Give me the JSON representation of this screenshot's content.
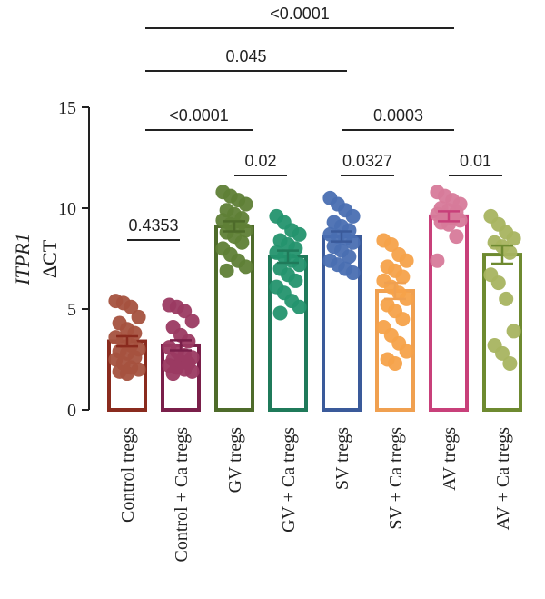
{
  "chart_data": {
    "type": "bar",
    "ylabel_line1": "ITPR1",
    "ylabel_line2": "ΔCT",
    "ylim": [
      0,
      15
    ],
    "yticks": [
      "0",
      "5",
      "10",
      "15"
    ],
    "categories": [
      "Control tregs",
      "Control + Ca tregs",
      "GV tregs",
      "GV + Ca tregs",
      "SV tregs",
      "SV + Ca tregs",
      "AV tregs",
      "AV + Ca tregs"
    ],
    "values": [
      3.4,
      3.2,
      9.1,
      7.6,
      8.6,
      5.9,
      9.6,
      7.7
    ],
    "errors": [
      0.25,
      0.25,
      0.25,
      0.3,
      0.25,
      0.4,
      0.25,
      0.45
    ],
    "colors": [
      "#8a2b1e",
      "#7a1f4a",
      "#4e6b2a",
      "#1f7a5a",
      "#3a5a9a",
      "#f0a050",
      "#c8407a",
      "#6e8a30"
    ],
    "point_colors": [
      "#a5523f",
      "#9b3a62",
      "#5f7f36",
      "#24936e",
      "#4a6fb2",
      "#f5a24a",
      "#d77a9a",
      "#a8b460"
    ],
    "points": [
      [
        5.4,
        5.3,
        5.1,
        4.6,
        4.3,
        4.0,
        3.8,
        3.6,
        3.4,
        3.2,
        3.0,
        2.9,
        2.8,
        2.6,
        2.5,
        2.3,
        2.1,
        2.0,
        1.9,
        1.8
      ],
      [
        5.2,
        5.1,
        4.9,
        4.4,
        4.1,
        3.7,
        3.4,
        3.1,
        2.9,
        2.7,
        2.6,
        2.5,
        2.4,
        2.3,
        2.2,
        2.1,
        2.0,
        1.9,
        1.8
      ],
      [
        10.8,
        10.6,
        10.4,
        10.2,
        9.9,
        9.7,
        9.5,
        9.4,
        9.2,
        9.1,
        8.9,
        8.8,
        8.6,
        8.3,
        8.0,
        7.7,
        7.4,
        7.1,
        6.9
      ],
      [
        9.6,
        9.3,
        8.9,
        8.7,
        8.4,
        8.2,
        8.0,
        7.8,
        7.6,
        7.4,
        7.2,
        7.0,
        6.7,
        6.4,
        6.1,
        5.8,
        5.4,
        5.1,
        4.8
      ],
      [
        10.5,
        10.2,
        9.9,
        9.6,
        9.3,
        9.1,
        8.9,
        8.7,
        8.6,
        8.5,
        8.3,
        8.1,
        7.9,
        7.6,
        7.4,
        7.2,
        7.0,
        6.8
      ],
      [
        8.4,
        8.2,
        7.7,
        7.4,
        7.1,
        6.9,
        6.6,
        6.4,
        6.1,
        5.8,
        5.5,
        5.2,
        4.9,
        4.5,
        4.1,
        3.7,
        3.3,
        2.9,
        2.5,
        2.3
      ],
      [
        10.8,
        10.6,
        10.4,
        10.2,
        10.0,
        9.9,
        9.8,
        9.7,
        9.6,
        9.5,
        9.4,
        9.3,
        9.2,
        8.6,
        7.4
      ],
      [
        9.6,
        9.2,
        8.8,
        8.5,
        8.3,
        8.1,
        7.8,
        6.7,
        6.3,
        5.5,
        3.9,
        3.2,
        2.8,
        2.3
      ]
    ],
    "comparisons": [
      {
        "from": 0,
        "to": 1,
        "label": "0.4353"
      },
      {
        "from": 2,
        "to": 3,
        "label": "0.02"
      },
      {
        "from": 4,
        "to": 5,
        "label": "0.0327"
      },
      {
        "from": 6,
        "to": 7,
        "label": "0.01"
      },
      {
        "from": 1,
        "to": 3,
        "label": "<0.0001"
      },
      {
        "from": 4,
        "to": 6,
        "label": "0.0003"
      },
      {
        "from": 1,
        "to": 5,
        "label": "0.045"
      },
      {
        "from": 1,
        "to": 7,
        "label": "<0.0001"
      }
    ]
  }
}
